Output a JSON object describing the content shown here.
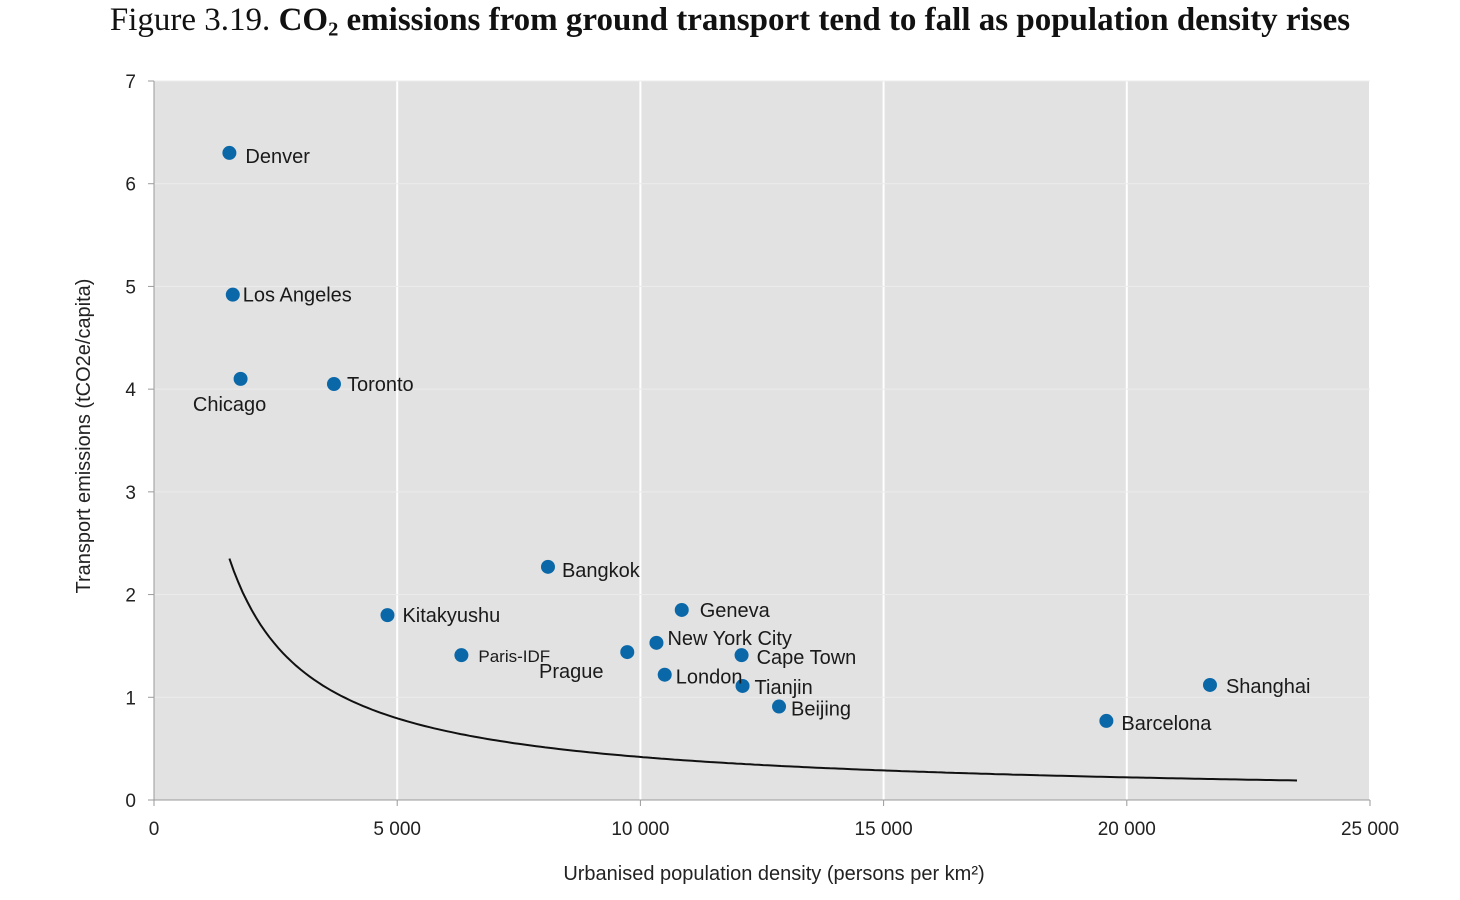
{
  "title": {
    "prefix": "Figure 3.19.",
    "main_before": "CO",
    "main_sub": "2",
    "main_after": " emissions from ground transport tend to fall as population density rises"
  },
  "chart_data": {
    "type": "scatter",
    "xlabel": "Urbanised population density (persons per km²)",
    "ylabel": "Transport emissions (tCO2e/capita)",
    "xlim": [
      0,
      25000
    ],
    "ylim": [
      0,
      7
    ],
    "x_ticks": [
      0,
      5000,
      10000,
      15000,
      20000,
      25000
    ],
    "x_tick_labels": [
      "0",
      "5 000",
      "10 000",
      "15 000",
      "20 000",
      "25 000"
    ],
    "y_ticks": [
      0,
      1,
      2,
      3,
      4,
      5,
      6,
      7
    ],
    "y_tick_labels": [
      "0",
      "1",
      "2",
      "3",
      "4",
      "5",
      "6",
      "7"
    ],
    "grid": "vertical",
    "colors": {
      "plot_bg": "#e2e2e2",
      "marker": "#0b68a8",
      "trend": "#111111",
      "grid": "#ffffff"
    },
    "points": [
      {
        "label": "Denver",
        "x": 1550,
        "y": 6.3
      },
      {
        "label": "Los Angeles",
        "x": 1620,
        "y": 4.92
      },
      {
        "label": "Chicago",
        "x": 1780,
        "y": 4.1
      },
      {
        "label": "Toronto",
        "x": 3700,
        "y": 4.05
      },
      {
        "label": "Kitakyushu",
        "x": 4800,
        "y": 1.8
      },
      {
        "label": "Paris-IDF",
        "x": 6320,
        "y": 1.41
      },
      {
        "label": "Bangkok",
        "x": 8100,
        "y": 2.27
      },
      {
        "label": "Prague",
        "x": 9730,
        "y": 1.44
      },
      {
        "label": "New York City",
        "x": 10330,
        "y": 1.53
      },
      {
        "label": "London",
        "x": 10500,
        "y": 1.22
      },
      {
        "label": "Geneva",
        "x": 10850,
        "y": 1.85
      },
      {
        "label": "Cape Town",
        "x": 12080,
        "y": 1.41
      },
      {
        "label": "Tianjin",
        "x": 12100,
        "y": 1.11
      },
      {
        "label": "Beijing",
        "x": 12850,
        "y": 0.91
      },
      {
        "label": "Barcelona",
        "x": 19580,
        "y": 0.77
      },
      {
        "label": "Shanghai",
        "x": 21710,
        "y": 1.12
      }
    ],
    "trendline": {
      "type": "power",
      "a": 2100,
      "b": -0.925,
      "x_range": [
        1550,
        23500
      ]
    }
  }
}
